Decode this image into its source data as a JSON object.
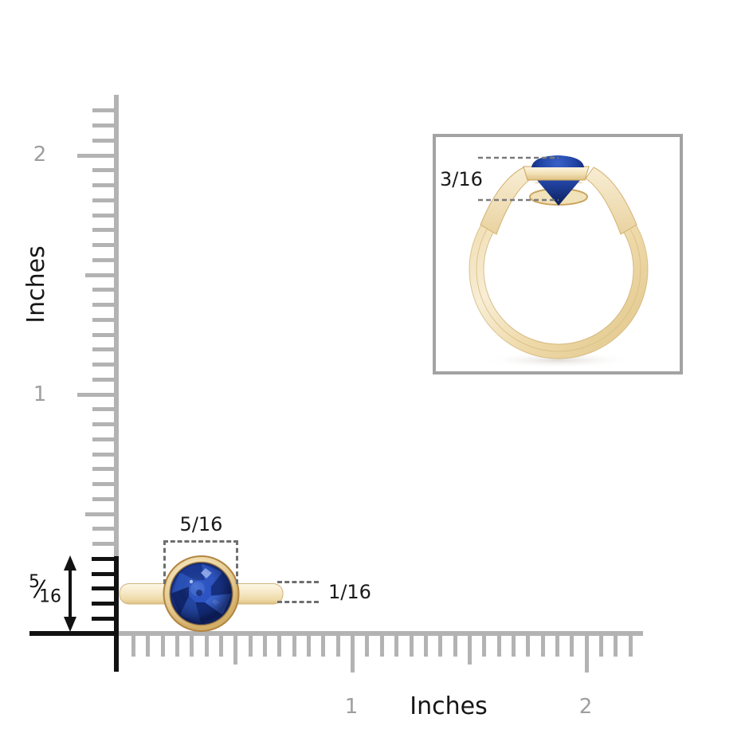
{
  "colors": {
    "background": "#ffffff",
    "ruler_gray": "#b3b3b3",
    "mark_gray": "#9e9e9e",
    "ink": "#121212",
    "dash_gray": "#6e6e6e",
    "inset_border": "#a3a3a3",
    "gold_light": "#faf1da",
    "gold_mid": "#f0ddae",
    "gold_deep": "#d9b878",
    "gold_edge": "#b9914f",
    "sapphire_dark": "#122a74",
    "sapphire_mid": "#2449ac",
    "sapphire_bright": "#3c66d0",
    "sapphire_highlight": "#8fabef"
  },
  "rulers": {
    "vertical": {
      "unit_label": "Inches",
      "marks": [
        "1",
        "2"
      ]
    },
    "horizontal": {
      "unit_label": "Inches",
      "marks": [
        "1",
        "2"
      ]
    }
  },
  "measurements": {
    "stone_width": "5/16",
    "band_thickness": "1/16",
    "head_height": "3/16",
    "profile_height": {
      "numerator": "5",
      "slash": "⁄",
      "denominator": "16"
    }
  }
}
